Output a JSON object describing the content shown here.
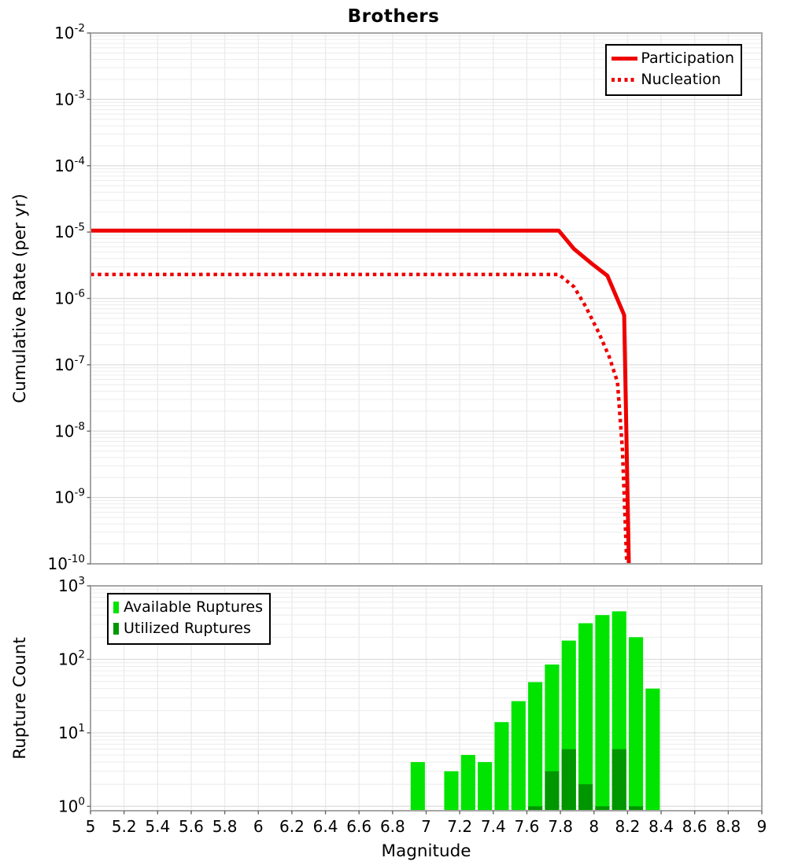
{
  "title": "Brothers",
  "colors": {
    "participation_red": "#ee0000",
    "available_green": "#00e400",
    "utilized_green": "#009600",
    "grid_minor": "#ececec",
    "grid_major": "#dddddd",
    "plot_border": "#a6a6a6",
    "tick": "#666666",
    "text": "#000000"
  },
  "chart_data": [
    {
      "type": "line",
      "title": "Brothers",
      "xlabel": "Magnitude",
      "ylabel": "Cumulative Rate (per yr)",
      "xlim": [
        5,
        9
      ],
      "x_grid_step": 0.2,
      "ylog_exponent_range": [
        -10,
        -2
      ],
      "y_tick_exponents": [
        -2,
        -3,
        -4,
        -5,
        -6,
        -7,
        -8,
        -9,
        -10
      ],
      "x_tick_labels": [],
      "grid": true,
      "legend_position": "top-right",
      "series": [
        {
          "name": "Participation",
          "line_style": "solid",
          "color": "#ee0000",
          "points": [
            [
              5.0,
              1.05e-05
            ],
            [
              7.79,
              1.05e-05
            ],
            [
              7.88,
              5.6e-06
            ],
            [
              7.99,
              3.3e-06
            ],
            [
              8.08,
              2.2e-06
            ],
            [
              8.18,
              5.6e-07
            ],
            [
              8.21,
              5e-11
            ]
          ]
        },
        {
          "name": "Nucleation",
          "line_style": "dotted",
          "color": "#ee0000",
          "points": [
            [
              5.0,
              2.3e-06
            ],
            [
              7.79,
              2.3e-06
            ],
            [
              7.88,
              1.5e-06
            ],
            [
              7.95,
              7.6e-07
            ],
            [
              8.03,
              3e-07
            ],
            [
              8.09,
              1.34e-07
            ],
            [
              8.14,
              5.5e-08
            ],
            [
              8.17,
              5e-09
            ],
            [
              8.2,
              5e-11
            ]
          ]
        }
      ]
    },
    {
      "type": "bar",
      "title": "",
      "xlabel": "Magnitude",
      "ylabel": "Rupture Count",
      "xlim": [
        5,
        9
      ],
      "x_grid_step": 0.2,
      "ylog_exponent_range": [
        0,
        3
      ],
      "y_tick_exponents": [
        3,
        2,
        1,
        0
      ],
      "x_tick_labels": [
        "5",
        "5.2",
        "5.4",
        "5.6",
        "5.8",
        "6",
        "6.2",
        "6.4",
        "6.6",
        "6.8",
        "7",
        "7.2",
        "7.4",
        "7.6",
        "7.8",
        "8",
        "8.2",
        "8.4",
        "8.6",
        "8.8",
        "9"
      ],
      "bin_width": 0.1,
      "grid": true,
      "legend_position": "top-left",
      "series": [
        {
          "name": "Available Ruptures",
          "color": "#00e400",
          "bins": [
            [
              6.9,
              4
            ],
            [
              7.1,
              3
            ],
            [
              7.2,
              5
            ],
            [
              7.3,
              4
            ],
            [
              7.4,
              14
            ],
            [
              7.5,
              27
            ],
            [
              7.6,
              49
            ],
            [
              7.7,
              85
            ],
            [
              7.8,
              180
            ],
            [
              7.9,
              310
            ],
            [
              8.0,
              400
            ],
            [
              8.1,
              450
            ],
            [
              8.2,
              200
            ],
            [
              8.3,
              40
            ]
          ]
        },
        {
          "name": "Utilized Ruptures",
          "color": "#009600",
          "bins": [
            [
              7.6,
              1
            ],
            [
              7.7,
              3
            ],
            [
              7.8,
              6
            ],
            [
              7.9,
              2
            ],
            [
              8.0,
              1
            ],
            [
              8.1,
              6
            ],
            [
              8.2,
              1
            ]
          ]
        }
      ]
    }
  ]
}
